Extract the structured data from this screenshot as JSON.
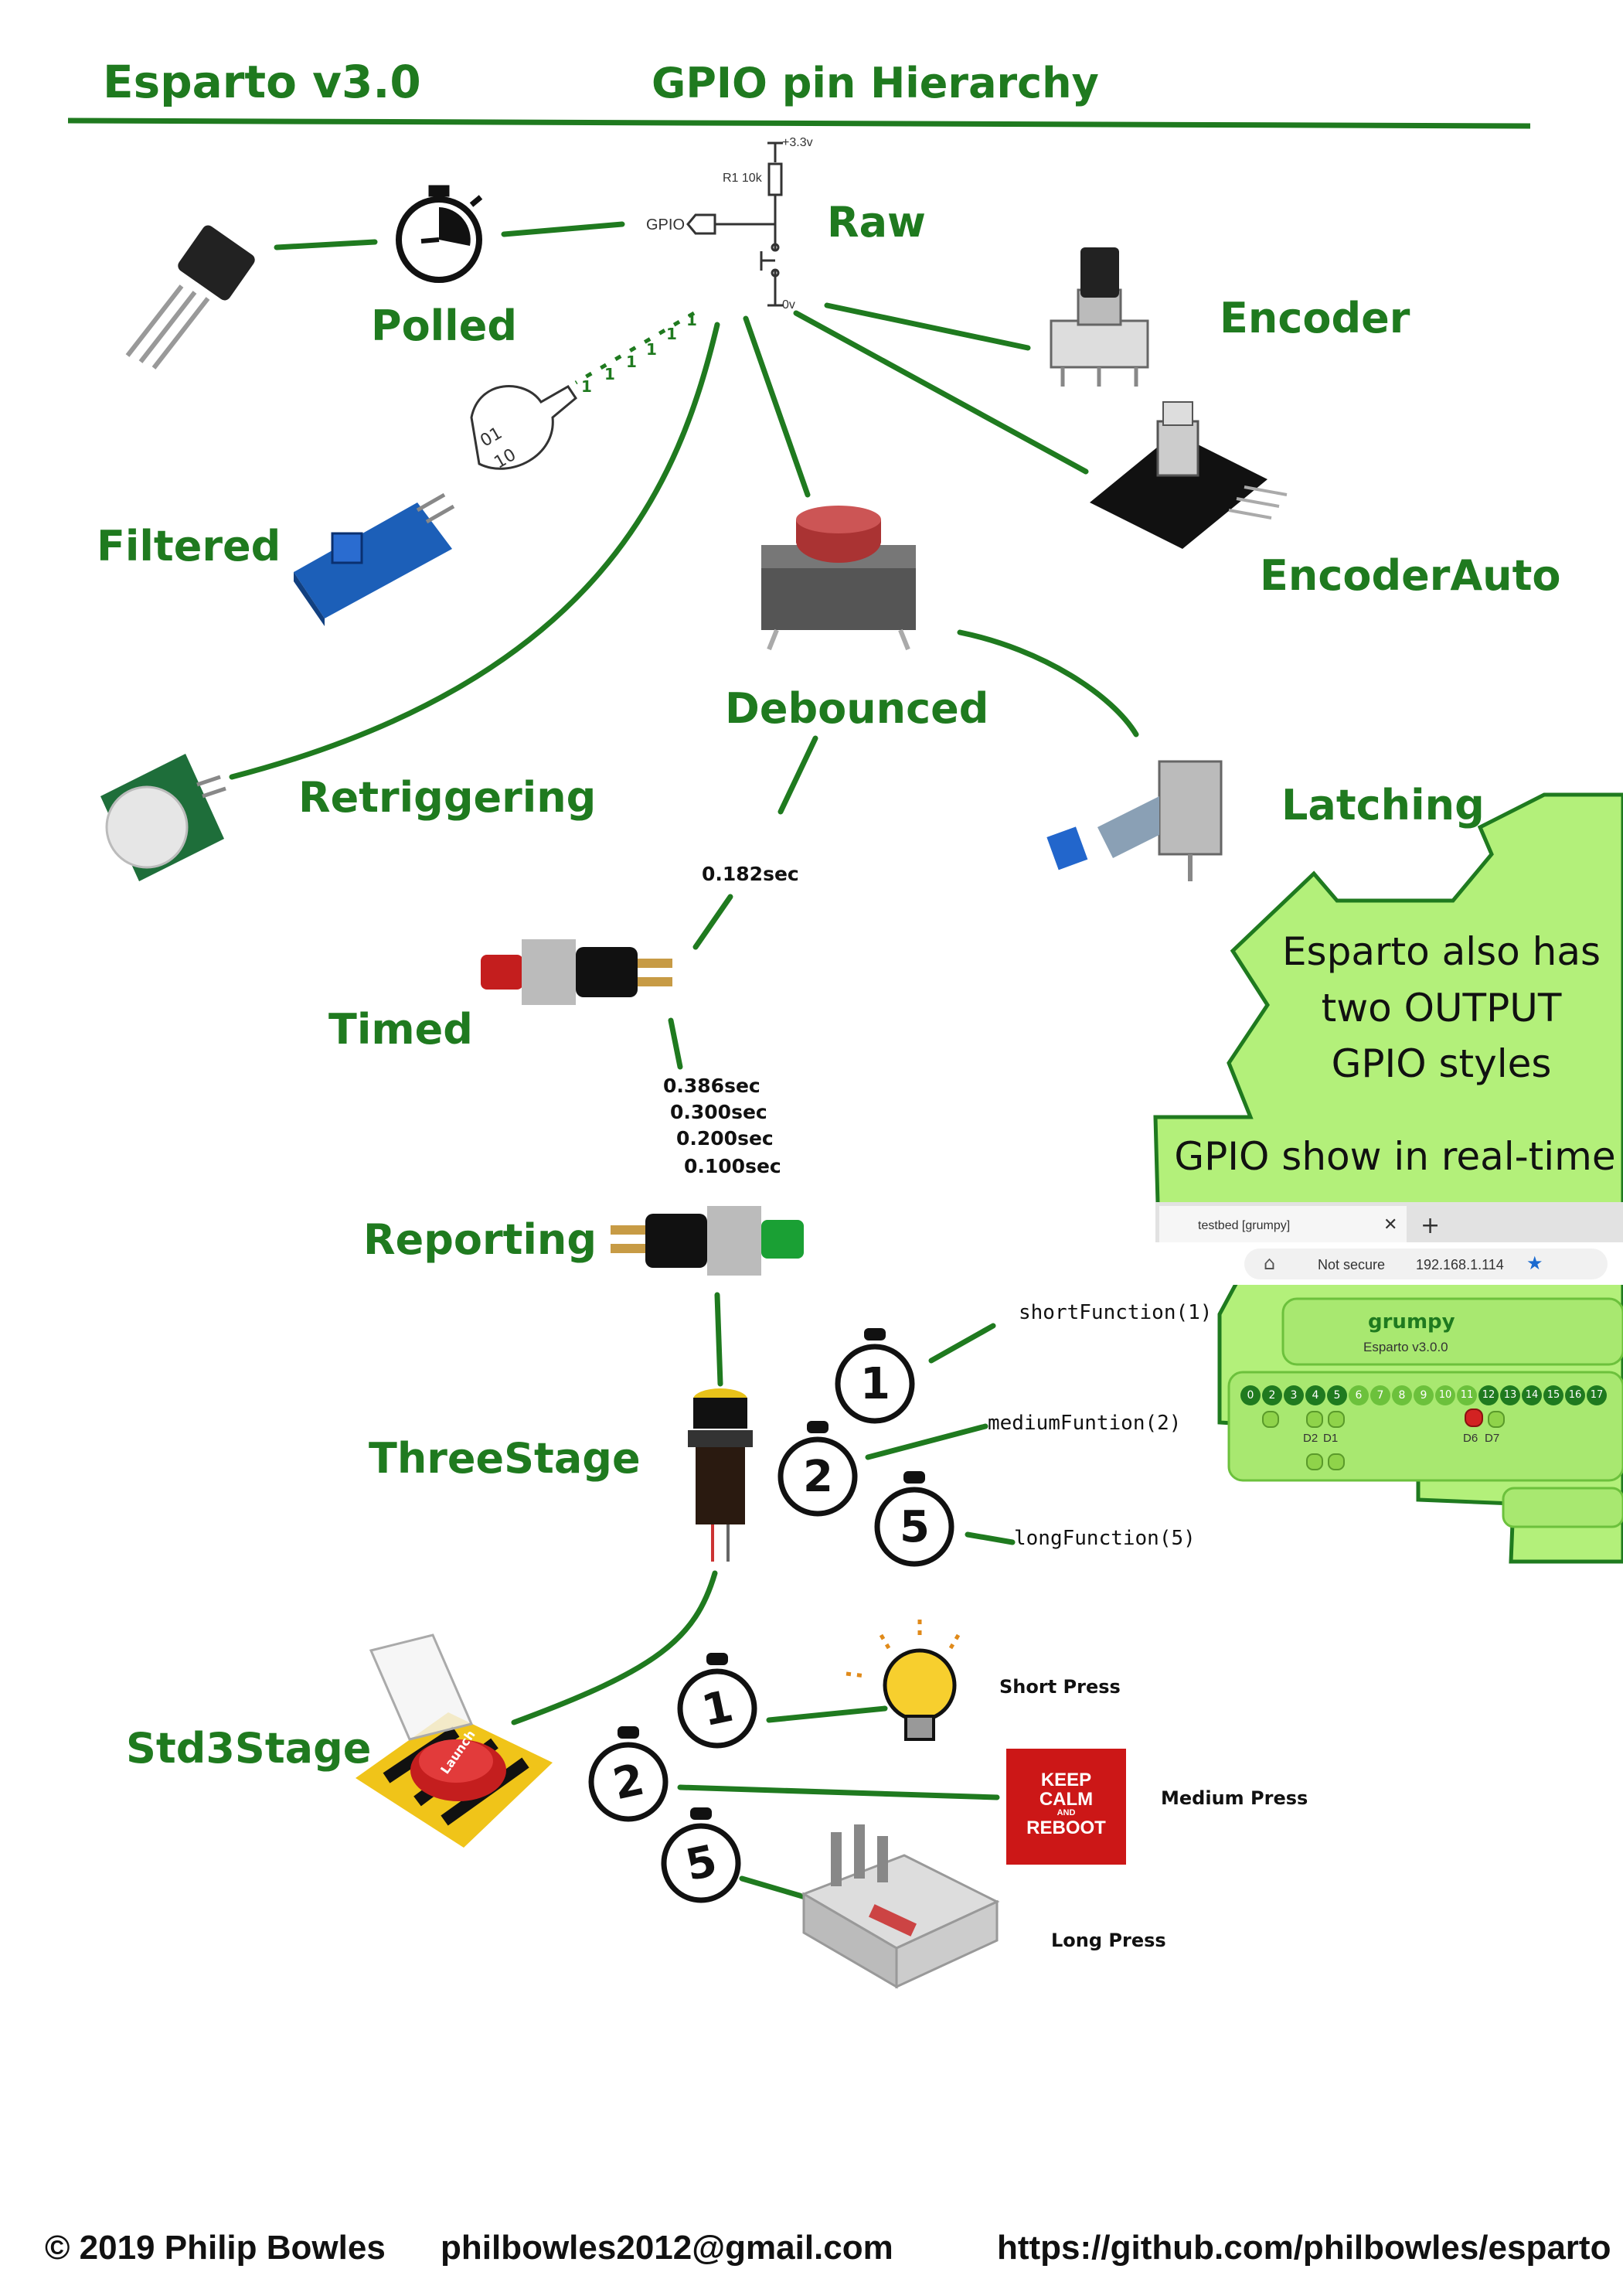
{
  "header": {
    "title": "Esparto v3.0",
    "subtitle": "GPIO pin Hierarchy"
  },
  "schematic": {
    "supply": "+3.3v",
    "resistor": "R1 10k",
    "gpio": "GPIO",
    "ground": "0v"
  },
  "nodes": {
    "raw": "Raw",
    "polled": "Polled",
    "encoder": "Encoder",
    "filtered": "Filtered",
    "encoder_auto": "EncoderAuto",
    "debounced": "Debounced",
    "retriggering": "Retriggering",
    "latching": "Latching",
    "timed": "Timed",
    "reporting": "Reporting",
    "three_stage": "ThreeStage",
    "std3stage": "Std3Stage"
  },
  "filter_ones": [
    "1",
    "1",
    "1",
    "1",
    "1",
    "1"
  ],
  "timings": {
    "debounce_to_timed": "0.182sec",
    "reporting": [
      "0.386sec",
      "0.300sec",
      "0.200sec",
      "0.100sec"
    ]
  },
  "functions": [
    "shortFunction(1)",
    "mediumFuntion(2)",
    "longFunction(5)"
  ],
  "timer_numbers": [
    "1",
    "2",
    "5"
  ],
  "presses": [
    "Short Press",
    "Medium Press",
    "Long Press"
  ],
  "keep_calm": [
    "KEEP",
    "CALM",
    "AND",
    "REBOOT"
  ],
  "outputs_note": [
    "Esparto also has",
    "two OUTPUT",
    "GPIO styles",
    "GPIO show in real-time"
  ],
  "browser": {
    "tab": "testbed [grumpy]",
    "security": "Not secure",
    "url": "192.168.1.114",
    "device": "grumpy",
    "version": "Esparto v3.0.0",
    "pins": [
      "0",
      "2",
      "3",
      "4",
      "5",
      "6",
      "7",
      "8",
      "9",
      "10",
      "11",
      "12",
      "13",
      "14",
      "15",
      "16",
      "17"
    ],
    "pin_labels": [
      "D2",
      "D1",
      "D6",
      "D7"
    ]
  },
  "footer": {
    "copyright": "© 2019 Philip Bowles",
    "email": "philbowles2012@gmail.com",
    "url": "https://github.com/philbowles/esparto"
  },
  "colors": {
    "green": "#1f7a1f",
    "callout_fill": "#b3f07a",
    "red_led": "#d22222",
    "keep_calm_red": "#cc1717"
  }
}
